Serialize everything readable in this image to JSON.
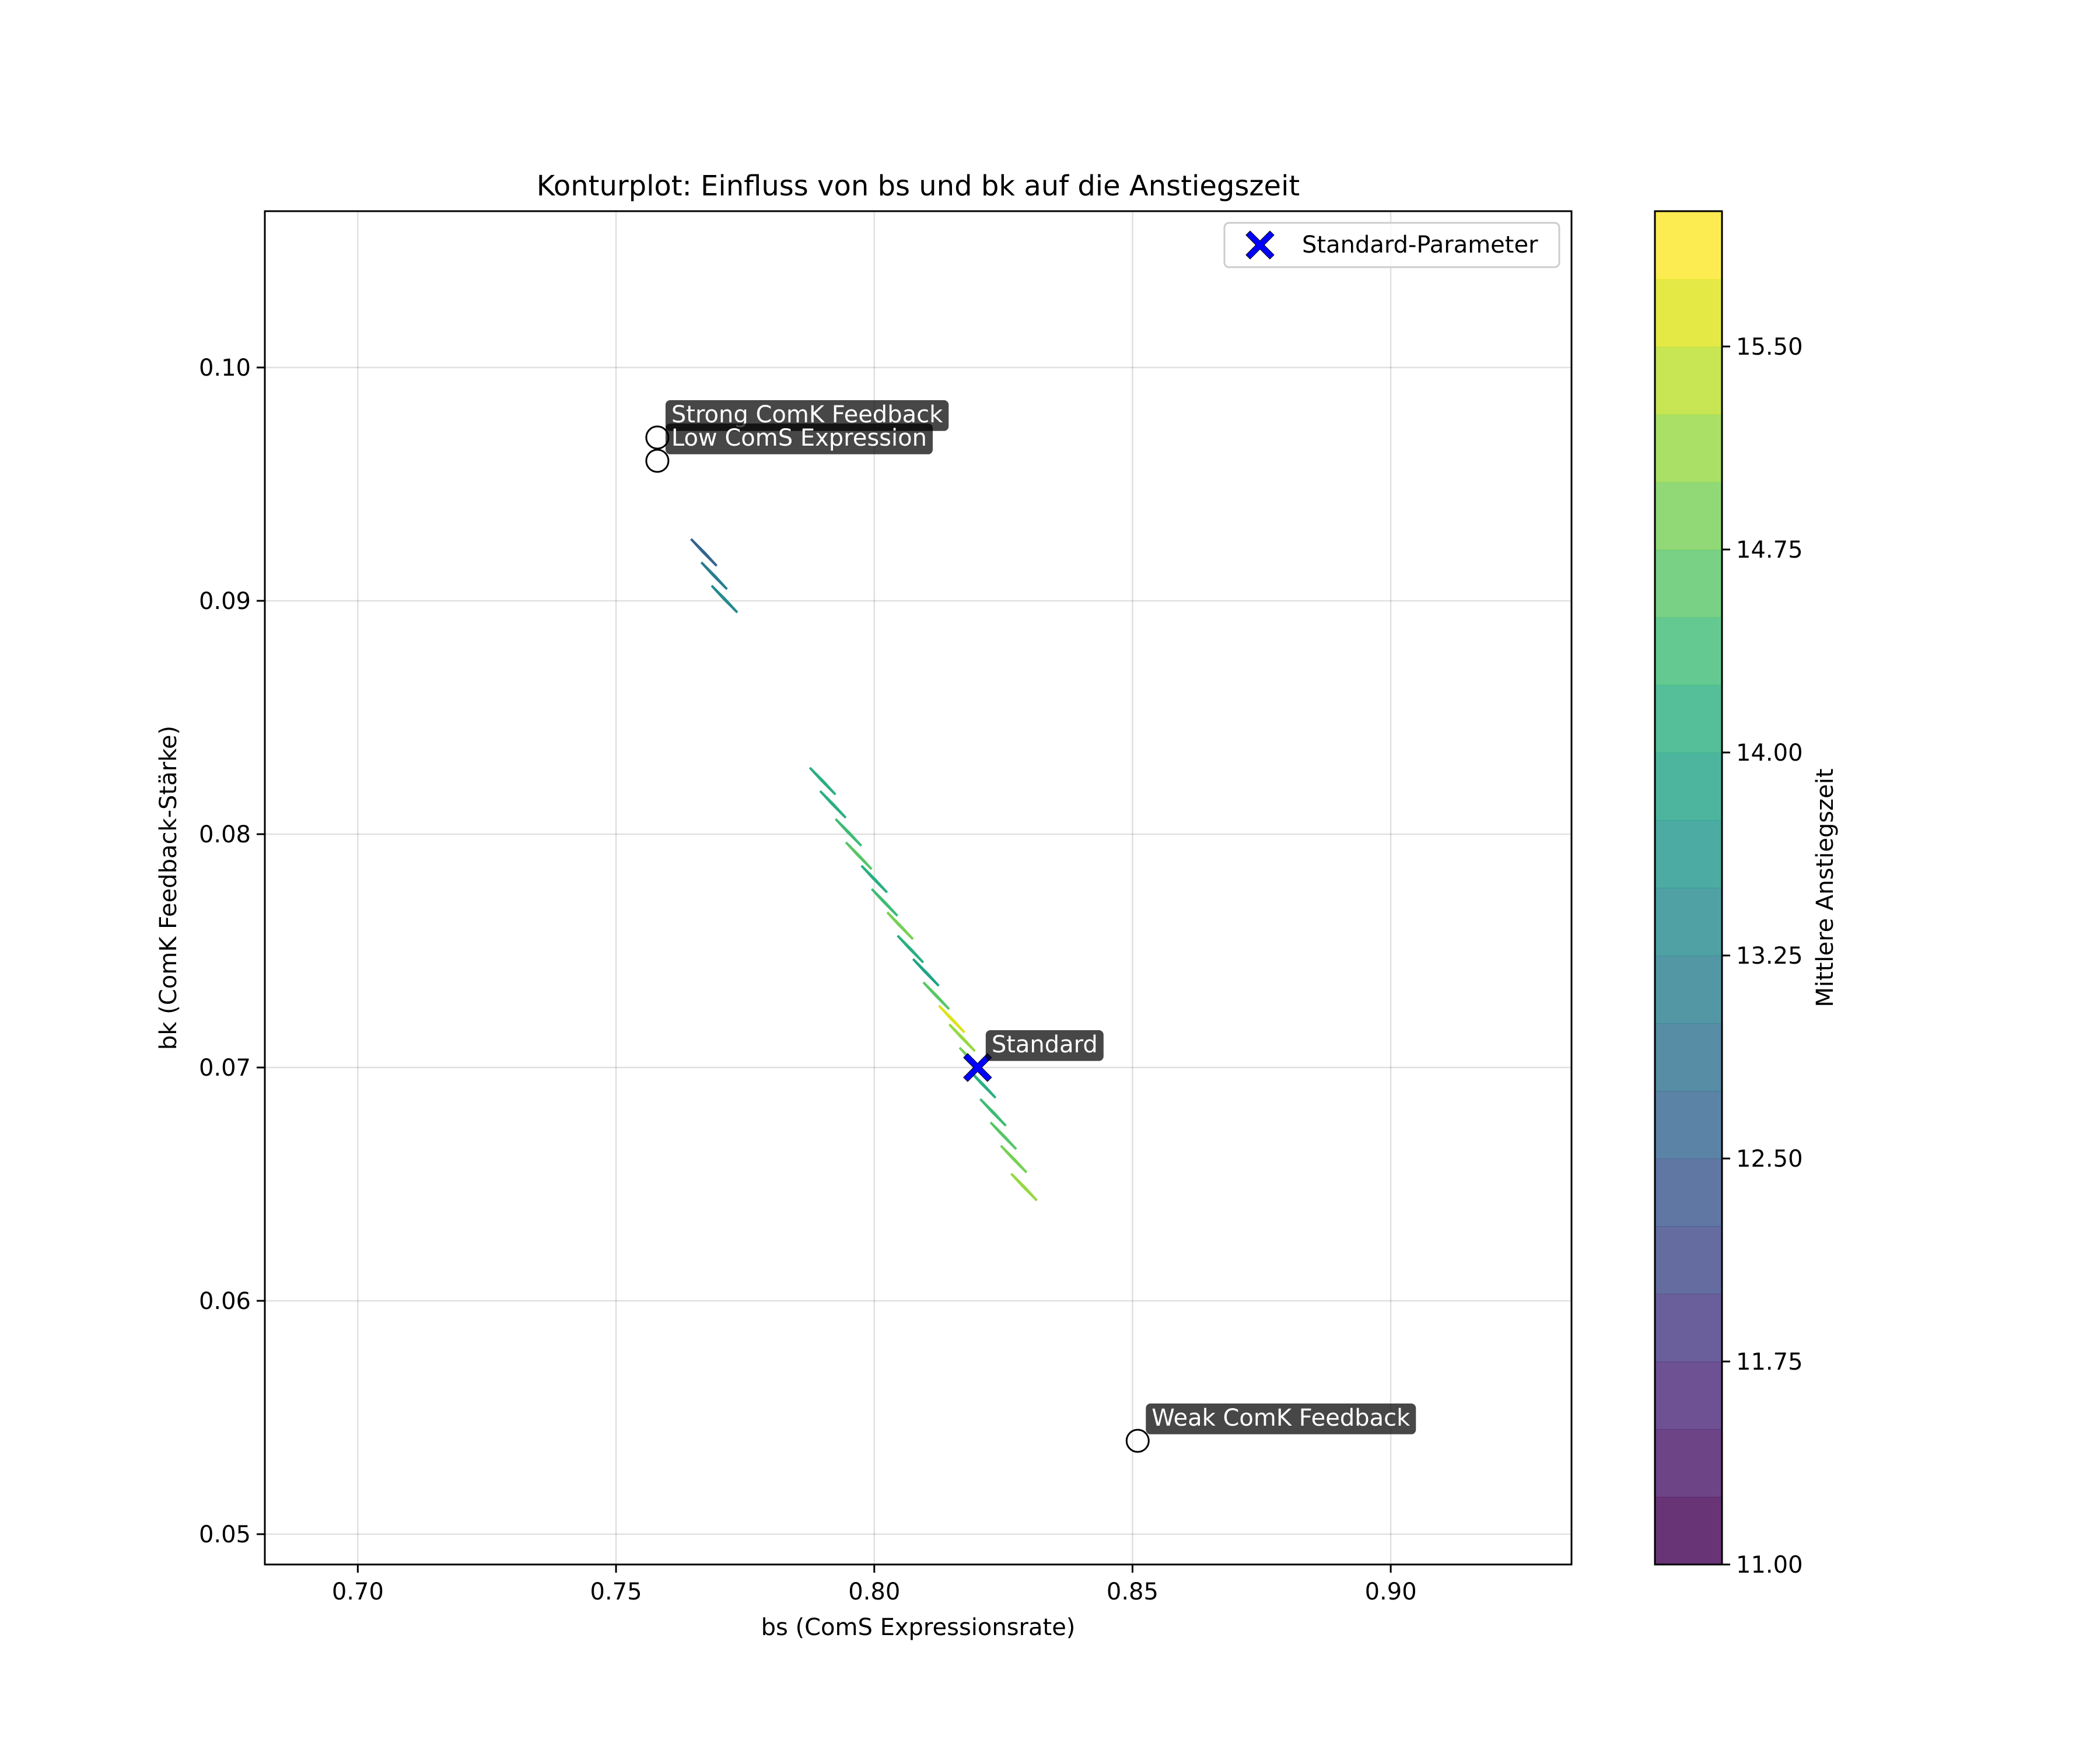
{
  "chart_data": {
    "type": "contour",
    "title": "Konturplot: Einfluss von bs und bk auf die Anstiegszeit",
    "xlabel": "bs (ComS Expressionsrate)",
    "ylabel": "bk (ComK Feedback-Stärke)",
    "xlim": [
      0.682,
      0.935
    ],
    "ylim": [
      0.0487,
      0.1067
    ],
    "xticks": [
      0.7,
      0.75,
      0.8,
      0.85,
      0.9
    ],
    "xtick_labels": [
      "0.70",
      "0.75",
      "0.80",
      "0.85",
      "0.90"
    ],
    "yticks": [
      0.05,
      0.06,
      0.07,
      0.08,
      0.09,
      0.1
    ],
    "ytick_labels": [
      "0.05",
      "0.06",
      "0.07",
      "0.08",
      "0.09",
      "0.10"
    ],
    "grid": true,
    "colorbar": {
      "label": "Mittlere Anstiegszeit",
      "min": 11.0,
      "max": 16.0,
      "levels": 20,
      "ticks": [
        11.0,
        11.75,
        12.5,
        13.25,
        14.0,
        14.75,
        15.5
      ],
      "tick_labels": [
        "11.00",
        "11.75",
        "12.50",
        "13.25",
        "14.00",
        "14.75",
        "15.50"
      ],
      "colormap": "viridis",
      "colors": [
        "#440154",
        "#481568",
        "#482677",
        "#453781",
        "#3f4788",
        "#39558c",
        "#32648e",
        "#2d718e",
        "#287d8e",
        "#238a8d",
        "#1f968b",
        "#20a386",
        "#29af7f",
        "#3dbc74",
        "#56c667",
        "#75d054",
        "#95d840",
        "#bade28",
        "#dde318",
        "#fde725"
      ],
      "alpha": 0.8
    },
    "contour_band": [
      {
        "x": 0.767,
        "y": 0.092,
        "value": 12.6
      },
      {
        "x": 0.769,
        "y": 0.091,
        "value": 13.0
      },
      {
        "x": 0.771,
        "y": 0.09,
        "value": 13.3
      },
      {
        "x": 0.79,
        "y": 0.0822,
        "value": 14.2
      },
      {
        "x": 0.792,
        "y": 0.0812,
        "value": 14.0
      },
      {
        "x": 0.795,
        "y": 0.08,
        "value": 14.3
      },
      {
        "x": 0.797,
        "y": 0.079,
        "value": 14.5
      },
      {
        "x": 0.8,
        "y": 0.078,
        "value": 14.1
      },
      {
        "x": 0.802,
        "y": 0.077,
        "value": 14.4
      },
      {
        "x": 0.805,
        "y": 0.076,
        "value": 14.8
      },
      {
        "x": 0.807,
        "y": 0.075,
        "value": 14.2
      },
      {
        "x": 0.81,
        "y": 0.074,
        "value": 13.9
      },
      {
        "x": 0.812,
        "y": 0.073,
        "value": 14.6
      },
      {
        "x": 0.815,
        "y": 0.072,
        "value": 15.6
      },
      {
        "x": 0.817,
        "y": 0.0712,
        "value": 15.2
      },
      {
        "x": 0.819,
        "y": 0.0702,
        "value": 14.9
      },
      {
        "x": 0.821,
        "y": 0.0692,
        "value": 14.0
      },
      {
        "x": 0.823,
        "y": 0.068,
        "value": 14.3
      },
      {
        "x": 0.825,
        "y": 0.067,
        "value": 14.6
      },
      {
        "x": 0.827,
        "y": 0.066,
        "value": 14.9
      },
      {
        "x": 0.829,
        "y": 0.0648,
        "value": 15.2
      }
    ],
    "points": [
      {
        "label": "Standard",
        "x": 0.82,
        "y": 0.07,
        "marker": "X",
        "color": "#0000ff",
        "series": "Standard-Parameter"
      },
      {
        "label": "Strong ComK Feedback",
        "x": 0.758,
        "y": 0.097,
        "marker": "o"
      },
      {
        "label": "Low ComS Expression",
        "x": 0.758,
        "y": 0.096,
        "marker": "o"
      },
      {
        "label": "Weak ComK Feedback",
        "x": 0.851,
        "y": 0.054,
        "marker": "o"
      }
    ],
    "legend": {
      "entries": [
        "Standard-Parameter"
      ],
      "position": "upper right"
    }
  }
}
